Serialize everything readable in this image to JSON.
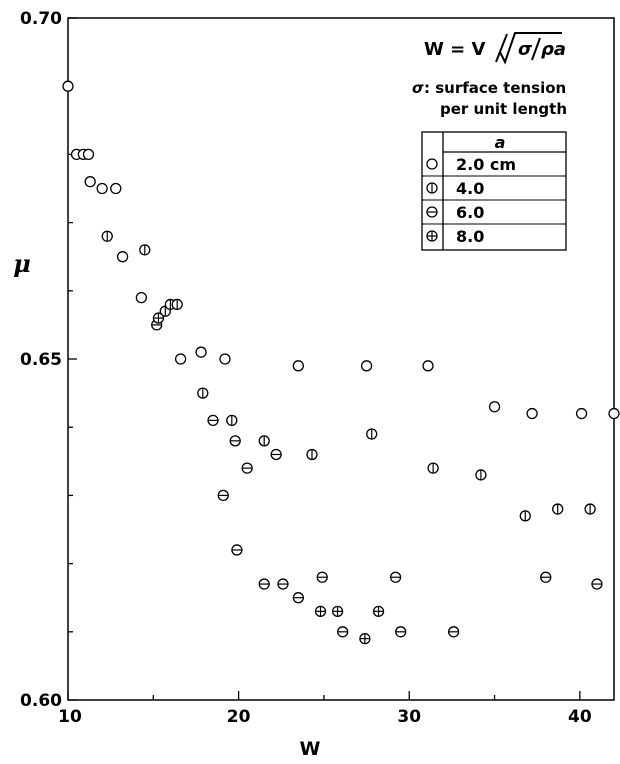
{
  "chart_data": {
    "type": "scatter",
    "xlabel": "W",
    "ylabel": "μ",
    "xlim": [
      10,
      42
    ],
    "ylim": [
      0.6,
      0.7
    ],
    "x_ticks": [
      10,
      20,
      30,
      40
    ],
    "x_tick_labels": [
      "10",
      "20",
      "30",
      "40"
    ],
    "y_ticks": [
      0.6,
      0.65,
      0.7
    ],
    "y_tick_labels": [
      "0.60",
      "0.65",
      "0.70"
    ],
    "grid": false,
    "annotations": {
      "formula_lhs": "W = V",
      "formula_num": "σ",
      "formula_den": "ρa",
      "sigma_symbol": "σ",
      "sigma_text": ": surface tension",
      "sigma_text2": "per unit length"
    },
    "legend": {
      "placement": "top-right",
      "header": "a",
      "entries": [
        "2.0 cm",
        "4.0",
        "6.0",
        "8.0"
      ]
    },
    "series": [
      {
        "name": "2.0 cm",
        "marker": "circle",
        "x": [
          10.0,
          10.5,
          10.9,
          11.2,
          11.3,
          12.0,
          12.8,
          13.2,
          14.3,
          16.6,
          17.8,
          19.2,
          23.5,
          27.5,
          31.1,
          35.0,
          37.2,
          40.1,
          42.0
        ],
        "y": [
          0.69,
          0.68,
          0.68,
          0.68,
          0.676,
          0.675,
          0.675,
          0.665,
          0.659,
          0.65,
          0.651,
          0.65,
          0.649,
          0.649,
          0.649,
          0.643,
          0.642,
          0.642,
          0.642
        ]
      },
      {
        "name": "4.0",
        "marker": "circle-vertical",
        "x": [
          12.3,
          14.5,
          15.7,
          16.0,
          16.4,
          17.9,
          19.6,
          21.5,
          24.3,
          27.8,
          31.4,
          34.2,
          36.8,
          38.7,
          40.6
        ],
        "y": [
          0.668,
          0.666,
          0.657,
          0.658,
          0.658,
          0.645,
          0.641,
          0.638,
          0.636,
          0.639,
          0.634,
          0.633,
          0.627,
          0.628,
          0.628
        ]
      },
      {
        "name": "6.0",
        "marker": "circle-horizontal",
        "x": [
          15.2,
          18.5,
          19.1,
          19.8,
          20.5,
          22.2,
          19.9,
          21.5,
          22.6,
          23.5,
          24.9,
          26.1,
          29.2,
          29.5,
          32.6,
          38.0,
          41.0
        ],
        "y": [
          0.655,
          0.641,
          0.63,
          0.638,
          0.634,
          0.636,
          0.622,
          0.617,
          0.617,
          0.615,
          0.618,
          0.61,
          0.618,
          0.61,
          0.61,
          0.618,
          0.617
        ]
      },
      {
        "name": "8.0",
        "marker": "circle-cross",
        "x": [
          15.3,
          24.8,
          25.8,
          27.4,
          28.2
        ],
        "y": [
          0.656,
          0.613,
          0.613,
          0.609,
          0.613
        ]
      }
    ]
  }
}
